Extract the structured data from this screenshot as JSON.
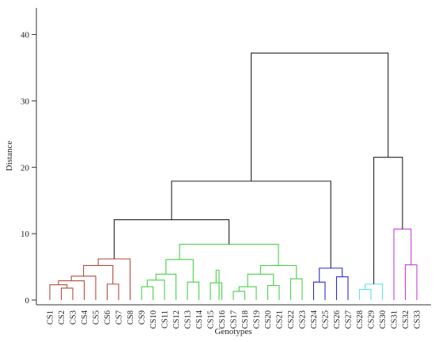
{
  "chart_data": {
    "type": "dendrogram",
    "xlabel": "Genotypes",
    "ylabel": "Distance",
    "ylim": [
      0,
      44
    ],
    "yticks": [
      0,
      10,
      20,
      30,
      40
    ],
    "leaves": [
      "CS1",
      "CS2",
      "CS3",
      "CS4",
      "CS5",
      "CS6",
      "CS7",
      "CS8",
      "CS9",
      "CS10",
      "CS11",
      "CS12",
      "CS13",
      "CS14",
      "CS15",
      "CS16",
      "CS17",
      "CS18",
      "CS19",
      "CS20",
      "CS21",
      "CS22",
      "CS23",
      "CS24",
      "CS25",
      "CS26",
      "CS27",
      "CS28",
      "CS29",
      "CS30",
      "CS31",
      "CS32",
      "CS33"
    ],
    "clusters": [
      {
        "color": "#b24a3c",
        "leaves": [
          "CS1",
          "CS2",
          "CS3",
          "CS4",
          "CS5",
          "CS6",
          "CS7",
          "CS8"
        ]
      },
      {
        "color": "#48d048",
        "leaves": [
          "CS9",
          "CS10",
          "CS11",
          "CS12",
          "CS13",
          "CS14",
          "CS15",
          "CS16",
          "CS17",
          "CS18",
          "CS19",
          "CS20",
          "CS21",
          "CS22",
          "CS23"
        ]
      },
      {
        "color": "#2a2acd",
        "leaves": [
          "CS24",
          "CS25",
          "CS26",
          "CS27"
        ]
      },
      {
        "color": "#5fe0ec",
        "leaves": [
          "CS28",
          "CS29",
          "CS30"
        ]
      },
      {
        "color": "#c63ed6",
        "leaves": [
          "CS31",
          "CS32",
          "CS33"
        ]
      }
    ],
    "link_color": "#222222",
    "merges": [
      {
        "a": "CS2",
        "b": "CS3",
        "height": 1.8,
        "color": "#b24a3c",
        "id": "r1"
      },
      {
        "a": "CS1",
        "b": "r1",
        "height": 2.3,
        "color": "#b24a3c",
        "id": "r2"
      },
      {
        "a": "r2",
        "b": "CS4",
        "height": 2.9,
        "color": "#b24a3c",
        "id": "r3"
      },
      {
        "a": "r3",
        "b": "CS5",
        "height": 3.6,
        "color": "#b24a3c",
        "id": "r4"
      },
      {
        "a": "CS6",
        "b": "CS7",
        "height": 2.4,
        "color": "#b24a3c",
        "id": "r5"
      },
      {
        "a": "r4",
        "b": "r5",
        "height": 5.2,
        "color": "#b24a3c",
        "id": "r6"
      },
      {
        "a": "r6",
        "b": "CS8",
        "height": 6.2,
        "color": "#b24a3c",
        "id": "r7"
      },
      {
        "a": "CS9",
        "b": "CS10",
        "height": 2.0,
        "color": "#48d048",
        "id": "g1"
      },
      {
        "a": "g1",
        "b": "CS11",
        "height": 3.0,
        "color": "#48d048",
        "id": "g2"
      },
      {
        "a": "g2",
        "b": "CS12",
        "height": 3.9,
        "color": "#48d048",
        "id": "g3"
      },
      {
        "a": "CS13",
        "b": "CS14",
        "height": 2.7,
        "color": "#48d048",
        "id": "g4"
      },
      {
        "a": "g3",
        "b": "g4",
        "height": 6.1,
        "color": "#48d048",
        "id": "g5"
      },
      {
        "a": "CS15",
        "b": "CS16",
        "height": 2.6,
        "color": "#48d048",
        "id": "g6"
      },
      {
        "a": "g6",
        "b": "g6x",
        "height": 4.5,
        "color": "#48d048",
        "id": "g7",
        "skip": true
      },
      {
        "a": "CS17",
        "b": "CS18",
        "height": 1.3,
        "color": "#48d048",
        "id": "g8"
      },
      {
        "a": "g8",
        "b": "CS19",
        "height": 2.0,
        "color": "#48d048",
        "id": "g9"
      },
      {
        "a": "CS20",
        "b": "CS21",
        "height": 2.2,
        "color": "#48d048",
        "id": "g10"
      },
      {
        "a": "g9",
        "b": "g10",
        "height": 3.9,
        "color": "#48d048",
        "id": "g11"
      },
      {
        "a": "CS22",
        "b": "CS23",
        "height": 3.2,
        "color": "#48d048",
        "id": "g12"
      },
      {
        "a": "g11",
        "b": "g12",
        "height": 5.2,
        "color": "#48d048",
        "id": "g13"
      },
      {
        "a": "g5",
        "b": "g13",
        "height": 8.4,
        "color": "#48d048",
        "id": "g14"
      },
      {
        "a": "CS24",
        "b": "CS25",
        "height": 2.7,
        "color": "#2a2acd",
        "id": "b1"
      },
      {
        "a": "CS26",
        "b": "CS27",
        "height": 3.5,
        "color": "#2a2acd",
        "id": "b2"
      },
      {
        "a": "b1",
        "b": "b2",
        "height": 4.8,
        "color": "#2a2acd",
        "id": "b3"
      },
      {
        "a": "CS28",
        "b": "CS29",
        "height": 1.6,
        "color": "#5fe0ec",
        "id": "c1"
      },
      {
        "a": "c1",
        "b": "CS30",
        "height": 2.4,
        "color": "#5fe0ec",
        "id": "c2"
      },
      {
        "a": "CS32",
        "b": "CS33",
        "height": 5.3,
        "color": "#c63ed6",
        "id": "m1"
      },
      {
        "a": "CS31",
        "b": "m1",
        "height": 10.7,
        "color": "#c63ed6",
        "id": "m2"
      },
      {
        "a": "r7",
        "b": "g14",
        "height": 12.1,
        "color": "#222222",
        "id": "k1"
      },
      {
        "a": "k1",
        "b": "b3",
        "height": 17.9,
        "color": "#222222",
        "id": "k2"
      },
      {
        "a": "c2",
        "b": "m2",
        "height": 21.5,
        "color": "#222222",
        "id": "k3"
      },
      {
        "a": "k2",
        "b": "k3",
        "height": 37.2,
        "color": "#222222",
        "id": "k4"
      }
    ]
  }
}
